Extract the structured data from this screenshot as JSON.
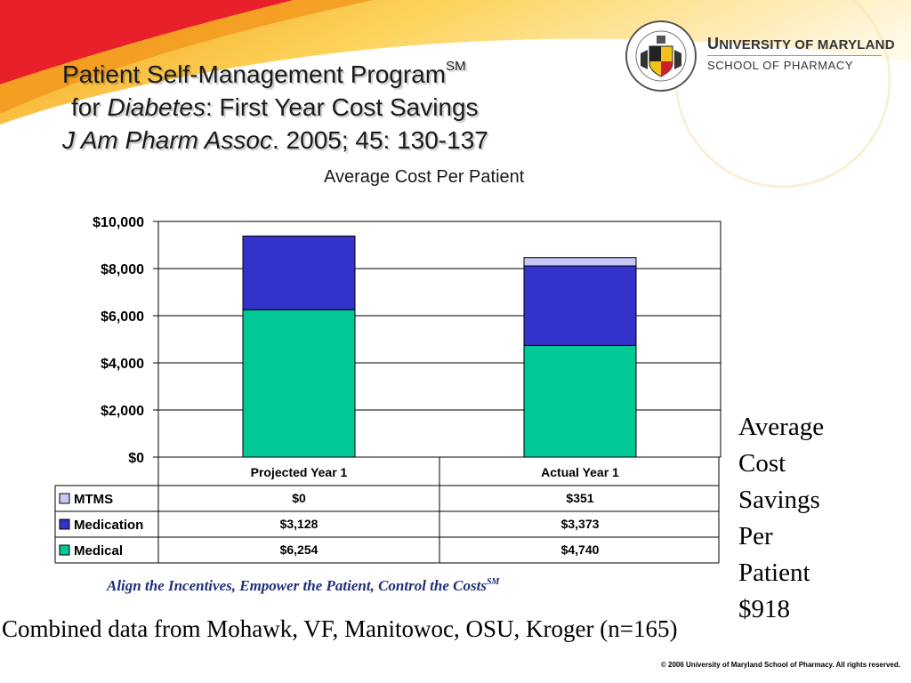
{
  "slide": {
    "title_line1": "Patient Self-Management Program",
    "title_sm": "SM",
    "title_line2_prefix": "for ",
    "title_line2_italic": "Diabetes",
    "title_line2_suffix": ": First Year Cost Savings",
    "title_line3_italic": "J Am Pharm Assoc",
    "title_line3_suffix": ". 2005; 45: 130-137",
    "logo_university": "University of Maryland",
    "logo_university_first": "U",
    "logo_university_rest": "NIVERSITY OF MARYLAND",
    "logo_school": "SCHOOL OF PHARMACY",
    "savings_lines": [
      "Average",
      "Cost",
      "Savings",
      "Per",
      "Patient",
      "$918"
    ],
    "tagline": "Align the Incentives, Empower the Patient, Control the Costs",
    "tagline_sm": "SM",
    "combined": "Combined data from Mohawk, VF, Manitowoc, OSU, Kroger (n=165)",
    "copyright": "© 2006 University of Maryland School of Pharmacy. All rights reserved."
  },
  "colors": {
    "background_top_red": "#e8202a",
    "background_orange": "#f7a21b",
    "background_yellow": "#fde97a",
    "medical": "#00c896",
    "medication": "#3333cc",
    "mtms": "#c8c8f4",
    "tagline": "#1f2f7a"
  },
  "chart_data": {
    "type": "bar",
    "stacked": true,
    "title": "Average Cost Per Patient",
    "categories": [
      "Projected Year 1",
      "Actual Year 1"
    ],
    "series": [
      {
        "name": "Medical",
        "values": [
          6254,
          4740
        ],
        "labels": [
          "$6,254",
          "$4,740"
        ],
        "color": "#00c896"
      },
      {
        "name": "Medication",
        "values": [
          3128,
          3373
        ],
        "labels": [
          "$3,128",
          "$3,373"
        ],
        "color": "#3333cc"
      },
      {
        "name": "MTMS",
        "values": [
          0,
          351
        ],
        "labels": [
          "$0",
          "$351"
        ],
        "color": "#c8c8f4"
      }
    ],
    "ylim": [
      0,
      10000
    ],
    "yticks": [
      0,
      2000,
      4000,
      6000,
      8000,
      10000
    ],
    "ytick_labels": [
      "$0",
      "$2,000",
      "$4,000",
      "$6,000",
      "$8,000",
      "$10,000"
    ],
    "grid": true,
    "legend": "data-table-below",
    "table_rows_order": [
      "MTMS",
      "Medication",
      "Medical"
    ]
  }
}
